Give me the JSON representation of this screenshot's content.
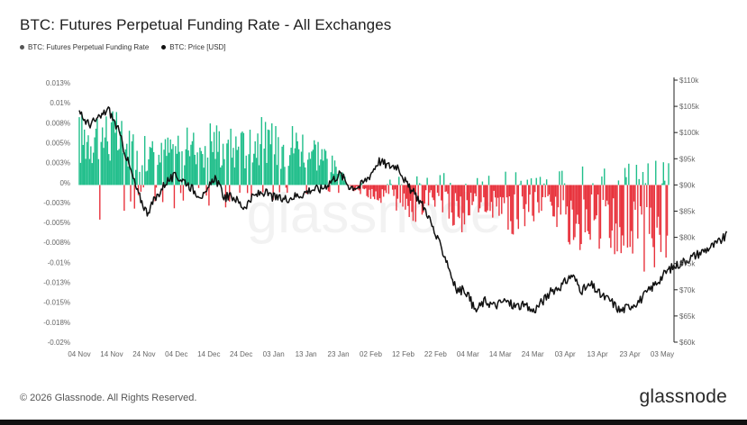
{
  "page": {
    "title": "BTC: Futures Perpetual Funding Rate - All Exchanges",
    "footer": "© 2026 Glassnode. All Rights Reserved.",
    "brand": "glassnode",
    "watermark": "glassnode"
  },
  "colors": {
    "positive": "#1fbe8a",
    "negative": "#e8323c",
    "price": "#111111",
    "funding_dot": "#555555",
    "price_dot": "#111111"
  },
  "chart_data": {
    "type": "bar",
    "title": "BTC: Futures Perpetual Funding Rate - All Exchanges",
    "legend": [
      "BTC: Futures Perpetual Funding Rate",
      "BTC: Price [USD]"
    ],
    "legend_position": "top-left",
    "grid": false,
    "x_ticks": [
      "04 Nov",
      "14 Nov",
      "24 Nov",
      "04 Dec",
      "14 Dec",
      "24 Dec",
      "03 Jan",
      "13 Jan",
      "23 Jan",
      "02 Feb",
      "12 Feb",
      "22 Feb",
      "04 Mar",
      "14 Mar",
      "24 Mar",
      "03 Apr",
      "13 Apr",
      "23 Apr",
      "03 May"
    ],
    "y_left": {
      "label": "Funding Rate",
      "range": [
        -0.02,
        0.013
      ],
      "ticks": [
        "0.013%",
        "0.01%",
        "0.008%",
        "0.005%",
        "0.003%",
        "0%",
        "-0.003%",
        "-0.005%",
        "-0.008%",
        "-0.01%",
        "-0.013%",
        "-0.015%",
        "-0.018%",
        "-0.02%"
      ]
    },
    "y_right": {
      "label": "Price [USD]",
      "range": [
        60000,
        110000
      ],
      "ticks": [
        "$110k",
        "$105k",
        "$100k",
        "$95k",
        "$90k",
        "$85k",
        "$80k",
        "$75k",
        "$70k",
        "$65k",
        "$60k"
      ]
    },
    "series": [
      {
        "name": "BTC: Futures Perpetual Funding Rate",
        "unit": "%",
        "points": [
          [
            0,
            0.0065
          ],
          [
            5,
            0.0075
          ],
          [
            10,
            0.007
          ],
          [
            15,
            0.0055
          ],
          [
            20,
            0.0045
          ],
          [
            25,
            0.004
          ],
          [
            30,
            0.0055
          ],
          [
            35,
            0.005
          ],
          [
            40,
            0.0065
          ],
          [
            45,
            0.0055
          ],
          [
            50,
            0.005
          ],
          [
            55,
            0.0065
          ],
          [
            60,
            0.0055
          ],
          [
            65,
            0.006
          ],
          [
            70,
            0.0055
          ],
          [
            75,
            0.0045
          ],
          [
            80,
            0.002
          ],
          [
            85,
            -0.0005
          ],
          [
            90,
            -0.001
          ],
          [
            95,
            -0.002
          ],
          [
            100,
            -0.0025
          ],
          [
            105,
            -0.003
          ],
          [
            110,
            -0.002
          ],
          [
            115,
            -0.004
          ],
          [
            120,
            -0.0035
          ],
          [
            125,
            -0.002
          ],
          [
            130,
            -0.003
          ],
          [
            135,
            -0.004
          ],
          [
            140,
            -0.003
          ],
          [
            145,
            -0.002
          ],
          [
            150,
            -0.004
          ],
          [
            155,
            -0.005
          ],
          [
            160,
            -0.0045
          ],
          [
            165,
            -0.006
          ],
          [
            170,
            -0.006
          ],
          [
            175,
            -0.007
          ],
          [
            180,
            -0.0065
          ],
          [
            183,
            -0.0075
          ]
        ]
      },
      {
        "name": "BTC: Price [USD]",
        "unit": "USD",
        "points": [
          [
            0,
            104000
          ],
          [
            3,
            102000
          ],
          [
            6,
            103000
          ],
          [
            9,
            105000
          ],
          [
            12,
            101000
          ],
          [
            15,
            95000
          ],
          [
            18,
            89000
          ],
          [
            21,
            85000
          ],
          [
            24,
            88000
          ],
          [
            27,
            91000
          ],
          [
            30,
            92000
          ],
          [
            33,
            91000
          ],
          [
            36,
            89000
          ],
          [
            39,
            88000
          ],
          [
            42,
            92000
          ],
          [
            45,
            88000
          ],
          [
            48,
            88000
          ],
          [
            51,
            86000
          ],
          [
            54,
            88000
          ],
          [
            57,
            89000
          ],
          [
            60,
            88000
          ],
          [
            63,
            87500
          ],
          [
            66,
            88000
          ],
          [
            69,
            88500
          ],
          [
            72,
            89500
          ],
          [
            75,
            89500
          ],
          [
            78,
            91000
          ],
          [
            81,
            92500
          ],
          [
            84,
            90000
          ],
          [
            87,
            90000
          ],
          [
            90,
            92000
          ],
          [
            93,
            95000
          ],
          [
            96,
            94000
          ],
          [
            99,
            94000
          ],
          [
            102,
            90000
          ],
          [
            105,
            88000
          ],
          [
            108,
            85000
          ],
          [
            111,
            80000
          ],
          [
            114,
            76000
          ],
          [
            117,
            70000
          ],
          [
            120,
            70000
          ],
          [
            123,
            66000
          ],
          [
            126,
            68000
          ],
          [
            129,
            67000
          ],
          [
            132,
            68000
          ],
          [
            135,
            67000
          ],
          [
            138,
            67000
          ],
          [
            141,
            66000
          ],
          [
            144,
            68000
          ],
          [
            147,
            70000
          ],
          [
            150,
            71000
          ],
          [
            153,
            73000
          ],
          [
            156,
            70000
          ],
          [
            159,
            71000
          ],
          [
            162,
            69000
          ],
          [
            165,
            68000
          ],
          [
            168,
            66000
          ],
          [
            171,
            67000
          ],
          [
            174,
            68000
          ],
          [
            177,
            70000
          ],
          [
            180,
            72000
          ],
          [
            183,
            74000
          ],
          [
            186,
            75000
          ],
          [
            189,
            76000
          ],
          [
            192,
            77000
          ],
          [
            195,
            78000
          ],
          [
            198,
            79000
          ],
          [
            201,
            80500
          ]
        ]
      }
    ]
  }
}
